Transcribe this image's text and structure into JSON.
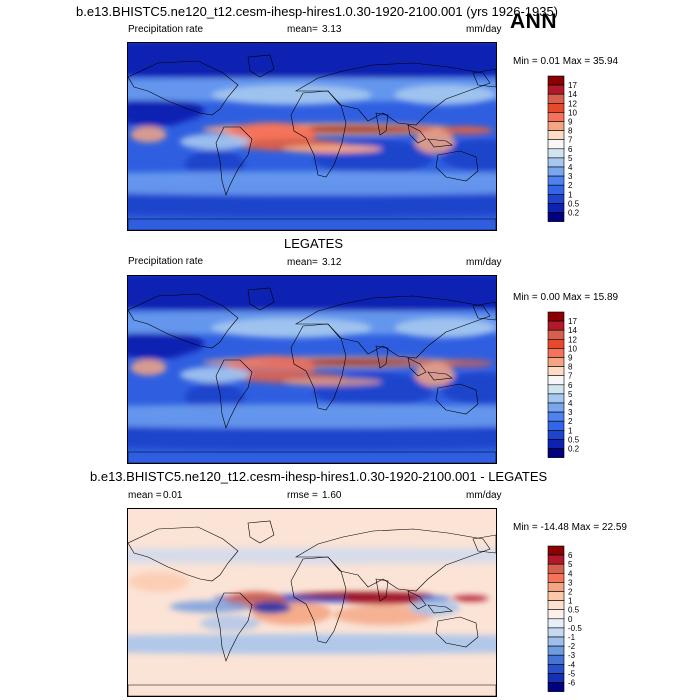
{
  "annotation": "ANN",
  "chart_data": [
    {
      "type": "heatmap",
      "title": "b.e13.BHISTC5.ne120_t12.cesm-ihesp-hires1.0.30-1920-2100.001 (yrs 1926-1935)",
      "variable": "Precipitation rate",
      "mean_label": "mean=",
      "mean": "3.13",
      "units": "mm/day",
      "min_max": "Min =   0.01 Max =  35.94",
      "colorbar_levels": [
        "17",
        "14",
        "12",
        "10",
        "9",
        "8",
        "7",
        "6",
        "5",
        "4",
        "3",
        "2",
        "1",
        "0.5",
        "0.2"
      ],
      "colorbar_colors": [
        "#8b0000",
        "#b2182b",
        "#d6604d",
        "#e8492b",
        "#f4735a",
        "#f4a582",
        "#fddbc7",
        "#f7f7f7",
        "#d1e5f0",
        "#a6c8f0",
        "#7aa6f0",
        "#4f82f0",
        "#3366e6",
        "#1f44cc",
        "#0d22b3",
        "#000080"
      ]
    },
    {
      "type": "heatmap",
      "title": "LEGATES",
      "variable": "Precipitation rate",
      "mean_label": "mean=",
      "mean": "3.12",
      "units": "mm/day",
      "min_max": "Min =   0.00 Max =  15.89",
      "colorbar_levels": [
        "17",
        "14",
        "12",
        "10",
        "9",
        "8",
        "7",
        "6",
        "5",
        "4",
        "3",
        "2",
        "1",
        "0.5",
        "0.2"
      ],
      "colorbar_colors": [
        "#8b0000",
        "#b2182b",
        "#d6604d",
        "#e8492b",
        "#f4735a",
        "#f4a582",
        "#fddbc7",
        "#f7f7f7",
        "#d1e5f0",
        "#a6c8f0",
        "#7aa6f0",
        "#4f82f0",
        "#3366e6",
        "#1f44cc",
        "#0d22b3",
        "#000080"
      ]
    },
    {
      "type": "heatmap",
      "title": "b.e13.BHISTC5.ne120_t12.cesm-ihesp-hires1.0.30-1920-2100.001 - LEGATES",
      "mean_label": "mean =",
      "mean": "0.01",
      "rmse_label": "rmse =",
      "rmse": "1.60",
      "units": "mm/day",
      "min_max": "Min = -14.48 Max =  22.59",
      "colorbar_levels": [
        "6",
        "5",
        "4",
        "3",
        "2",
        "1",
        "0.5",
        "0",
        "-0.5",
        "-1",
        "-2",
        "-3",
        "-4",
        "-5",
        "-6"
      ],
      "colorbar_colors": [
        "#8b0000",
        "#b2182b",
        "#d6604d",
        "#f4735a",
        "#f4a582",
        "#fbc9a9",
        "#fde0d0",
        "#fdf0ea",
        "#e6eef8",
        "#c6d9f2",
        "#9fbfeb",
        "#6f9be0",
        "#4575d4",
        "#2850c8",
        "#1530b0",
        "#000080"
      ]
    }
  ]
}
